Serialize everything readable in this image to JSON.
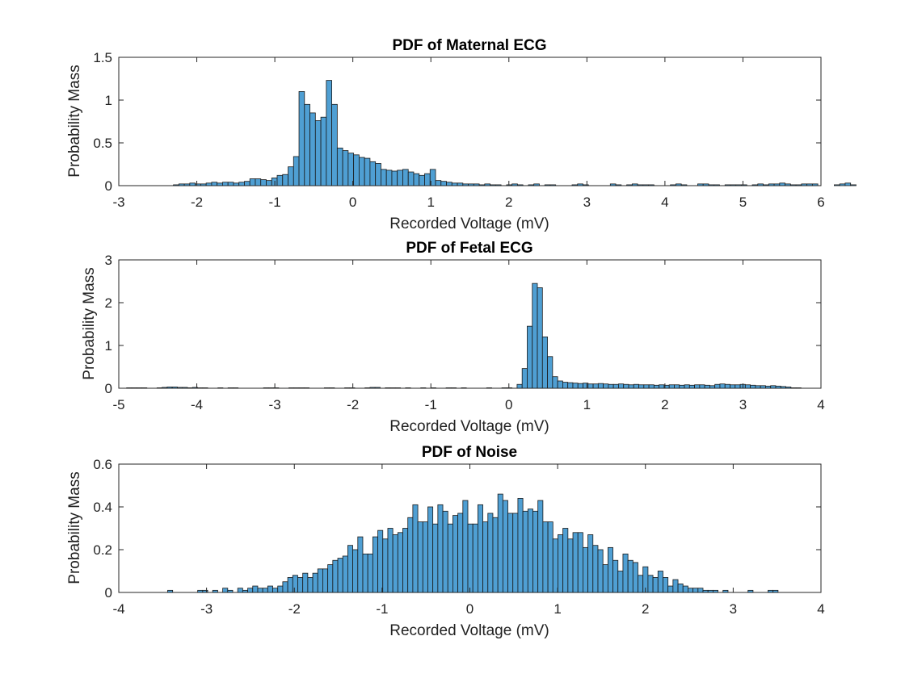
{
  "colors": {
    "bar_fill": "#4f9fd3",
    "bar_edge": "#1a1a1a",
    "axes": "#262626",
    "background": "#ffffff"
  },
  "chart_data": [
    {
      "type": "bar",
      "subtype": "histogram",
      "title": "PDF of Maternal ECG",
      "xlabel": "Recorded Voltage (mV)",
      "ylabel": "Probability Mass",
      "xlim": [
        -3,
        6
      ],
      "ylim": [
        0,
        1.5
      ],
      "xticks": [
        -3,
        -2,
        -1,
        0,
        1,
        2,
        3,
        4,
        5,
        6
      ],
      "yticks": [
        0,
        0.5,
        1,
        1.5
      ],
      "ytick_labels": [
        "0",
        "0.5",
        "1",
        "1.5"
      ],
      "bin_start": -2.3,
      "bin_width": 0.07,
      "values": [
        0.01,
        0.02,
        0.02,
        0.03,
        0.02,
        0.02,
        0.03,
        0.04,
        0.03,
        0.04,
        0.04,
        0.03,
        0.04,
        0.05,
        0.08,
        0.08,
        0.07,
        0.06,
        0.09,
        0.12,
        0.13,
        0.22,
        0.34,
        1.1,
        0.95,
        0.85,
        0.76,
        0.8,
        1.23,
        0.95,
        0.44,
        0.41,
        0.38,
        0.36,
        0.33,
        0.32,
        0.28,
        0.26,
        0.19,
        0.18,
        0.17,
        0.18,
        0.19,
        0.16,
        0.14,
        0.12,
        0.14,
        0.19,
        0.06,
        0.05,
        0.04,
        0.03,
        0.03,
        0.02,
        0.02,
        0.02,
        0.01,
        0.02,
        0.01,
        0.01,
        0.0,
        0.01,
        0.02,
        0.01,
        0.0,
        0.01,
        0.02,
        0.0,
        0.01,
        0.01,
        0.0,
        0.0,
        0.0,
        0.01,
        0.02,
        0.01,
        0.0,
        0.0,
        0.0,
        0.0,
        0.02,
        0.01,
        0.0,
        0.01,
        0.02,
        0.01,
        0.01,
        0.01,
        0.0,
        0.0,
        0.0,
        0.01,
        0.02,
        0.01,
        0.0,
        0.0,
        0.02,
        0.02,
        0.01,
        0.01,
        0.0,
        0.01,
        0.01,
        0.01,
        0.01,
        0.0,
        0.01,
        0.02,
        0.01,
        0.02,
        0.02,
        0.03,
        0.02,
        0.01,
        0.01,
        0.02,
        0.02,
        0.02,
        0.0,
        0.0,
        0.0,
        0.01,
        0.02,
        0.03,
        0.01
      ]
    },
    {
      "type": "bar",
      "subtype": "histogram",
      "title": "PDF of Fetal ECG",
      "xlabel": "Recorded Voltage (mV)",
      "ylabel": "Probability Mass",
      "xlim": [
        -5,
        4
      ],
      "ylim": [
        0,
        3
      ],
      "xticks": [
        -5,
        -4,
        -3,
        -2,
        -1,
        0,
        1,
        2,
        3,
        4
      ],
      "yticks": [
        0,
        1,
        2,
        3
      ],
      "ytick_labels": [
        "0",
        "1",
        "2",
        "3"
      ],
      "bin_start": -4.9,
      "bin_width": 0.065,
      "values": [
        0.01,
        0.01,
        0.01,
        0.01,
        0.0,
        0.0,
        0.01,
        0.02,
        0.03,
        0.03,
        0.02,
        0.02,
        0.01,
        0.02,
        0.01,
        0.01,
        0.0,
        0.0,
        0.01,
        0.0,
        0.01,
        0.01,
        0.0,
        0.0,
        0.0,
        0.0,
        0.0,
        0.01,
        0.01,
        0.01,
        0.0,
        0.0,
        0.01,
        0.01,
        0.01,
        0.01,
        0.0,
        0.0,
        0.0,
        0.01,
        0.01,
        0.0,
        0.0,
        0.01,
        0.01,
        0.0,
        0.0,
        0.01,
        0.02,
        0.02,
        0.0,
        0.01,
        0.01,
        0.01,
        0.0,
        0.01,
        0.0,
        0.0,
        0.01,
        0.0,
        0.01,
        0.0,
        0.0,
        0.01,
        0.01,
        0.0,
        0.01,
        0.0,
        0.0,
        0.0,
        0.0,
        0.01,
        0.0,
        0.0,
        0.01,
        0.01,
        0.0,
        0.09,
        0.46,
        1.45,
        2.45,
        2.35,
        1.2,
        0.74,
        0.27,
        0.17,
        0.14,
        0.13,
        0.12,
        0.11,
        0.12,
        0.1,
        0.1,
        0.11,
        0.1,
        0.09,
        0.09,
        0.1,
        0.09,
        0.08,
        0.09,
        0.08,
        0.08,
        0.08,
        0.07,
        0.08,
        0.07,
        0.08,
        0.08,
        0.07,
        0.08,
        0.07,
        0.08,
        0.08,
        0.07,
        0.06,
        0.09,
        0.1,
        0.09,
        0.08,
        0.08,
        0.09,
        0.08,
        0.07,
        0.06,
        0.06,
        0.05,
        0.06,
        0.05,
        0.04,
        0.03,
        0.01,
        0.01
      ]
    },
    {
      "type": "bar",
      "subtype": "histogram",
      "title": "PDF of Noise",
      "xlabel": "Recorded Voltage (mV)",
      "ylabel": "Probability Mass",
      "xlim": [
        -4,
        4
      ],
      "ylim": [
        0,
        0.6
      ],
      "xticks": [
        -4,
        -3,
        -2,
        -1,
        0,
        1,
        2,
        3,
        4
      ],
      "yticks": [
        0,
        0.2,
        0.4,
        0.6
      ],
      "ytick_labels": [
        "0",
        "0.2",
        "0.4",
        "0.6"
      ],
      "bin_start": -3.5,
      "bin_width": 0.057,
      "values": [
        0.0,
        0.01,
        0.0,
        0.0,
        0.0,
        0.0,
        0.0,
        0.01,
        0.01,
        0.0,
        0.01,
        0.0,
        0.02,
        0.01,
        0.0,
        0.02,
        0.01,
        0.02,
        0.03,
        0.02,
        0.02,
        0.03,
        0.02,
        0.03,
        0.05,
        0.07,
        0.08,
        0.07,
        0.09,
        0.07,
        0.09,
        0.11,
        0.11,
        0.13,
        0.15,
        0.16,
        0.17,
        0.22,
        0.2,
        0.26,
        0.18,
        0.18,
        0.26,
        0.29,
        0.25,
        0.3,
        0.27,
        0.28,
        0.3,
        0.35,
        0.41,
        0.33,
        0.33,
        0.4,
        0.32,
        0.41,
        0.38,
        0.32,
        0.36,
        0.37,
        0.43,
        0.32,
        0.32,
        0.41,
        0.33,
        0.37,
        0.35,
        0.46,
        0.43,
        0.37,
        0.37,
        0.44,
        0.38,
        0.39,
        0.38,
        0.43,
        0.33,
        0.33,
        0.25,
        0.27,
        0.3,
        0.25,
        0.28,
        0.28,
        0.21,
        0.27,
        0.22,
        0.2,
        0.13,
        0.21,
        0.15,
        0.1,
        0.18,
        0.15,
        0.14,
        0.08,
        0.12,
        0.08,
        0.07,
        0.1,
        0.07,
        0.03,
        0.06,
        0.04,
        0.03,
        0.02,
        0.02,
        0.02,
        0.01,
        0.01,
        0.01,
        0.0,
        0.01,
        0.0,
        0.0,
        0.0,
        0.0,
        0.01,
        0.0,
        0.0,
        0.0,
        0.01,
        0.01,
        0.0
      ]
    }
  ]
}
